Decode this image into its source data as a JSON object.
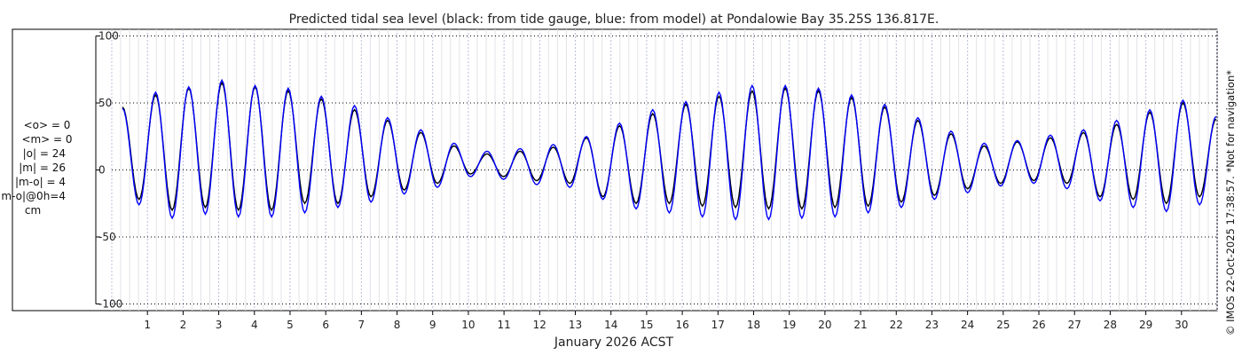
{
  "chart_data": {
    "type": "line",
    "title": "Predicted tidal sea level (black: from tide gauge, blue: from model) at Pondalowie Bay 35.25S 136.817E.",
    "xlabel": "January 2026 ACST",
    "ylabel": "",
    "xlim": [
      0,
      31
    ],
    "ylim": [
      -105,
      105
    ],
    "x_ticks": [
      1,
      2,
      3,
      4,
      5,
      6,
      7,
      8,
      9,
      10,
      11,
      12,
      13,
      14,
      15,
      16,
      17,
      18,
      19,
      20,
      21,
      22,
      23,
      24,
      25,
      26,
      27,
      28,
      29,
      30
    ],
    "x_tick_labels": [
      "1",
      "2",
      "3",
      "4",
      "5",
      "6",
      "7",
      "8",
      "9",
      "10",
      "11",
      "12",
      "13",
      "14",
      "15",
      "16",
      "17",
      "18",
      "19",
      "20",
      "21",
      "22",
      "23",
      "24",
      "25",
      "26",
      "27",
      "28",
      "29",
      "30"
    ],
    "y_ticks": [
      -100,
      -50,
      0,
      50,
      100
    ],
    "y_tick_labels": [
      "-100",
      "-50",
      "0",
      "50",
      "100"
    ],
    "grid": {
      "x": true,
      "y": true,
      "x_minor_per_day": 4
    },
    "series": [
      {
        "color": "#000000",
        "values": [
          47,
          -22,
          56,
          -30,
          61,
          -28,
          65,
          -30,
          62,
          -30,
          59,
          -25,
          53,
          -25,
          45,
          -20,
          37,
          -15,
          28,
          -10,
          18,
          -3,
          12,
          -5,
          14,
          -8,
          17,
          -10,
          24,
          -20,
          33,
          -25,
          42,
          -25,
          49,
          -27,
          55,
          -28,
          59,
          -29,
          61,
          -29,
          59,
          -28,
          54,
          -27,
          47,
          -24,
          37,
          -19,
          27,
          -14,
          18,
          -10,
          21,
          -8,
          24,
          -10,
          28,
          -20,
          34,
          -22,
          43,
          -25,
          50,
          -20,
          38
        ]
      },
      {
        "color": "#0000ff",
        "values": [
          46,
          -26,
          58,
          -36,
          62,
          -33,
          67,
          -35,
          63,
          -35,
          61,
          -32,
          55,
          -28,
          48,
          -24,
          39,
          -18,
          30,
          -13,
          20,
          -5,
          14,
          -7,
          16,
          -11,
          19,
          -13,
          25,
          -22,
          35,
          -29,
          45,
          -32,
          51,
          -35,
          58,
          -37,
          63,
          -37,
          63,
          -36,
          61,
          -35,
          56,
          -32,
          49,
          -28,
          39,
          -22,
          29,
          -17,
          20,
          -12,
          22,
          -10,
          26,
          -14,
          30,
          -23,
          37,
          -28,
          45,
          -31,
          52,
          -26,
          40
        ]
      }
    ]
  },
  "stats": {
    "lines": [
      "<o> = 0",
      "<m> = 0",
      "|o| = 24",
      "|m| = 26",
      "|m-o| = 4",
      "|m-o|@0h=4",
      "cm"
    ]
  },
  "side_note": "© IMOS 22-Oct-2025 17:38:57.  *Not for navigation*"
}
